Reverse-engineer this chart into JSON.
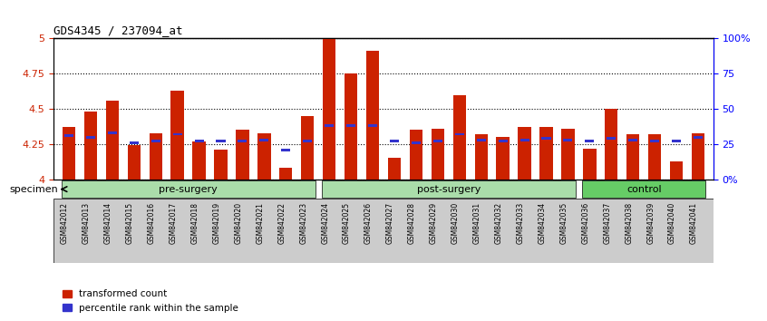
{
  "title": "GDS4345 / 237094_at",
  "samples": [
    "GSM842012",
    "GSM842013",
    "GSM842014",
    "GSM842015",
    "GSM842016",
    "GSM842017",
    "GSM842018",
    "GSM842019",
    "GSM842020",
    "GSM842021",
    "GSM842022",
    "GSM842023",
    "GSM842024",
    "GSM842025",
    "GSM842026",
    "GSM842027",
    "GSM842028",
    "GSM842029",
    "GSM842030",
    "GSM842031",
    "GSM842032",
    "GSM842033",
    "GSM842034",
    "GSM842035",
    "GSM842036",
    "GSM842037",
    "GSM842038",
    "GSM842039",
    "GSM842040",
    "GSM842041"
  ],
  "red_values": [
    4.37,
    4.48,
    4.56,
    4.24,
    4.33,
    4.63,
    4.27,
    4.21,
    4.35,
    4.33,
    4.08,
    4.45,
    5.0,
    4.75,
    4.91,
    4.15,
    4.35,
    4.36,
    4.6,
    4.32,
    4.3,
    4.37,
    4.37,
    4.36,
    4.22,
    4.5,
    4.32,
    4.32,
    4.13,
    4.33
  ],
  "blue_values": [
    4.31,
    4.3,
    4.33,
    4.26,
    4.27,
    4.32,
    4.27,
    4.27,
    4.27,
    4.28,
    4.21,
    4.27,
    4.38,
    4.38,
    4.38,
    4.27,
    4.26,
    4.27,
    4.32,
    4.28,
    4.27,
    4.28,
    4.29,
    4.28,
    4.27,
    4.29,
    4.28,
    4.27,
    4.27,
    4.3
  ],
  "groups": [
    {
      "label": "pre-surgery",
      "start": 0,
      "end": 12,
      "color": "#90EE90"
    },
    {
      "label": "post-surgery",
      "start": 12,
      "end": 24,
      "color": "#90EE90"
    },
    {
      "label": "control",
      "start": 24,
      "end": 30,
      "color": "#66CC66"
    }
  ],
  "ymin": 4.0,
  "ymax": 5.0,
  "yticks": [
    4.0,
    4.25,
    4.5,
    4.75,
    5.0
  ],
  "ytick_labels": [
    "4",
    "4.25",
    "4.5",
    "4.75",
    "5"
  ],
  "right_yticks": [
    0.0,
    0.25,
    0.5,
    0.75,
    1.0
  ],
  "right_ytick_labels": [
    "0%",
    "25",
    "50",
    "75",
    "100%"
  ],
  "bar_color": "#CC2200",
  "blue_color": "#3333CC",
  "bar_width": 0.6,
  "bg_color_plot": "#FFFFFF",
  "bg_color_xticklabels": "#CCCCCC",
  "dotted_line_color": "#000000",
  "specimen_label": "specimen",
  "legend_red": "transformed count",
  "legend_blue": "percentile rank within the sample"
}
